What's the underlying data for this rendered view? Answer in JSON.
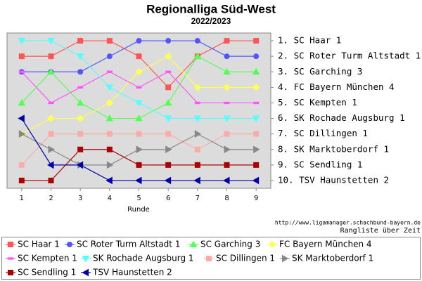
{
  "chart_data": {
    "type": "line",
    "title": "Regionalliga Süd-West",
    "subtitle": "2022/2023",
    "x_label": "Runde",
    "credit": "http://www.ligamanager.schachbund-bayern.de",
    "caption": "Rangliste über Zeit",
    "x": [
      1,
      2,
      3,
      4,
      5,
      6,
      7,
      8,
      9
    ],
    "xlim": [
      0.5,
      9.5
    ],
    "xticks": [
      1,
      2,
      3,
      4,
      5,
      6,
      7,
      8,
      9
    ],
    "ylim": [
      10.5,
      0.5
    ],
    "yticks": [
      {
        "value": 1,
        "label": "1. SC Haar 1"
      },
      {
        "value": 2,
        "label": "2. SC Roter Turm Altstadt 1"
      },
      {
        "value": 3,
        "label": "3. SC Garching 3"
      },
      {
        "value": 4,
        "label": "4. FC Bayern München 4"
      },
      {
        "value": 5,
        "label": "5. SC Kempten 1"
      },
      {
        "value": 6,
        "label": "6. SK Rochade Augsburg 1"
      },
      {
        "value": 7,
        "label": "7. SC Dillingen 1"
      },
      {
        "value": 8,
        "label": "8. SK Marktoberdorf 1"
      },
      {
        "value": 9,
        "label": "9. SC Sendling 1"
      },
      {
        "value": 10,
        "label": "10. TSV Haunstetten 2"
      }
    ],
    "series": [
      {
        "name": "SC Haar 1",
        "color": "#ff5555",
        "marker": "square",
        "values": [
          2,
          2,
          1,
          1,
          2,
          4,
          2,
          1,
          1
        ]
      },
      {
        "name": "SC Roter Turm Altstadt 1",
        "color": "#5555ff",
        "marker": "circle",
        "values": [
          3,
          3,
          3,
          2,
          1,
          1,
          1,
          2,
          2
        ]
      },
      {
        "name": "SC Garching 3",
        "color": "#55ff55",
        "marker": "triangle-up",
        "values": [
          5,
          3,
          5,
          6,
          6,
          5,
          2,
          3,
          3
        ]
      },
      {
        "name": "FC Bayern München 4",
        "color": "#ffff55",
        "marker": "diamond",
        "values": [
          7,
          6,
          6,
          5,
          3,
          2,
          4,
          4,
          4
        ]
      },
      {
        "name": "SC Kempten 1",
        "color": "#ff55ff",
        "marker": "dash",
        "values": [
          3,
          5,
          4,
          3,
          4,
          3,
          5,
          5,
          5
        ]
      },
      {
        "name": "SK Rochade Augsburg 1",
        "color": "#55ffff",
        "marker": "triangle-down",
        "values": [
          1,
          1,
          2,
          4,
          5,
          6,
          6,
          6,
          6
        ]
      },
      {
        "name": "SC Dillingen 1",
        "color": "#ffaaaa",
        "marker": "square",
        "values": [
          9,
          7,
          7,
          7,
          7,
          7,
          8,
          7,
          7
        ]
      },
      {
        "name": "SK Marktoberdorf 1",
        "color": "#888888",
        "marker": "triangle-right",
        "values": [
          7,
          8,
          9,
          9,
          8,
          8,
          7,
          8,
          8
        ]
      },
      {
        "name": "SC Sendling 1",
        "color": "#aa0000",
        "marker": "square",
        "values": [
          10,
          10,
          8,
          8,
          9,
          9,
          9,
          9,
          9
        ]
      },
      {
        "name": "TSV Haunstetten 2",
        "color": "#0000aa",
        "marker": "triangle-left",
        "values": [
          6,
          9,
          9,
          10,
          10,
          10,
          10,
          10,
          10
        ]
      }
    ]
  }
}
